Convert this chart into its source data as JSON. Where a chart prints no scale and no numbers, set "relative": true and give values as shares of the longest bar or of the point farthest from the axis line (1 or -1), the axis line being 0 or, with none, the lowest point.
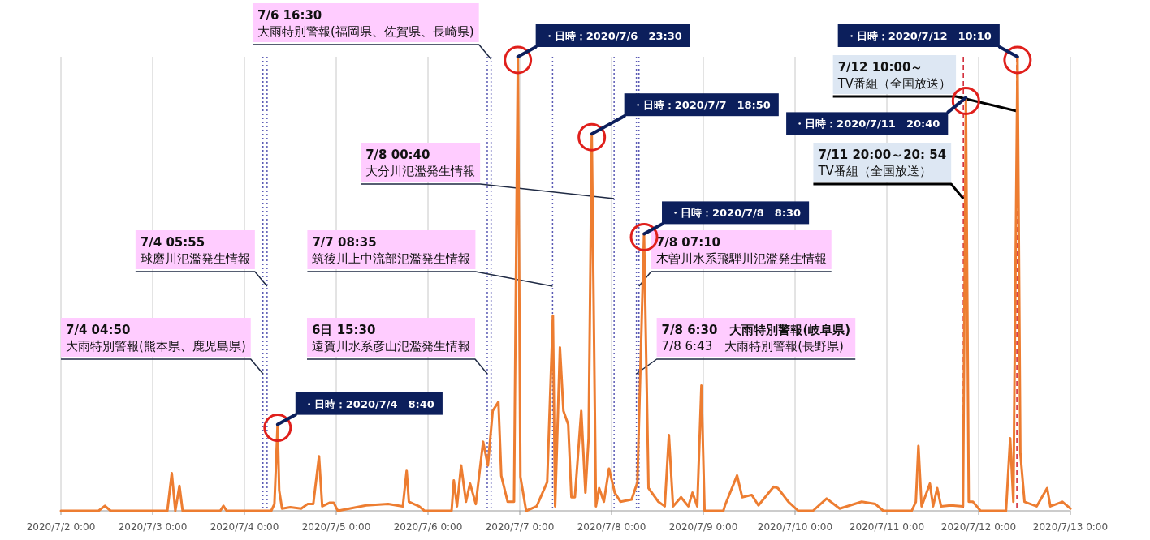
{
  "chart_data": {
    "type": "line",
    "relative": true,
    "grid": "x",
    "marker": "none",
    "line_style": "solid",
    "xlim": [
      "2020-07-02",
      "2020-07-13"
    ],
    "xticks": [
      {
        "value": "2020-07-02",
        "label": "2020/7/2 0:00"
      },
      {
        "value": "2020-07-03",
        "label": "2020/7/3 0:00"
      },
      {
        "value": "2020-07-04",
        "label": "2020/7/4 0:00"
      },
      {
        "value": "2020-07-05",
        "label": "2020/7/5 0:00"
      },
      {
        "value": "2020-07-06",
        "label": "2020/7/6 0:00"
      },
      {
        "value": "2020-07-07",
        "label": "2020/7/7 0:00"
      },
      {
        "value": "2020-07-08",
        "label": "2020/7/8 0:00"
      },
      {
        "value": "2020-07-09",
        "label": "2020/7/9 0:00"
      },
      {
        "value": "2020-07-10",
        "label": "2020/7/10 0:00"
      },
      {
        "value": "2020-07-11",
        "label": "2020/7/11 0:00"
      },
      {
        "value": "2020-07-12",
        "label": "2020/7/12 0:00"
      },
      {
        "value": "2020-07-13",
        "label": "2020/7/13 0:00"
      }
    ],
    "series": [
      {
        "color": "#ed7d31",
        "x": [
          "2020-07-02T00:00",
          "2020-07-02T09:50",
          "2020-07-02T11:30",
          "2020-07-02T13:00",
          "2020-07-03T03:50",
          "2020-07-03T05:00",
          "2020-07-03T05:55",
          "2020-07-03T07:00",
          "2020-07-03T07:50",
          "2020-07-03T17:40",
          "2020-07-03T18:30",
          "2020-07-03T19:20",
          "2020-07-04T07:00",
          "2020-07-04T07:50",
          "2020-07-04T08:40",
          "2020-07-04T09:05",
          "2020-07-04T09:50",
          "2020-07-04T12:00",
          "2020-07-04T14:50",
          "2020-07-04T16:30",
          "2020-07-04T18:00",
          "2020-07-04T19:30",
          "2020-07-04T20:20",
          "2020-07-04T22:20",
          "2020-07-04T23:20",
          "2020-07-05T00:25",
          "2020-07-05T07:50",
          "2020-07-05T13:35",
          "2020-07-05T17:25",
          "2020-07-05T18:25",
          "2020-07-05T19:00",
          "2020-07-05T21:40",
          "2020-07-05T23:05",
          "2020-07-06T06:10",
          "2020-07-06T06:45",
          "2020-07-06T07:35",
          "2020-07-06T08:40",
          "2020-07-06T09:55",
          "2020-07-06T11:00",
          "2020-07-06T12:30",
          "2020-07-06T14:25",
          "2020-07-06T15:40",
          "2020-07-06T16:55",
          "2020-07-06T18:25",
          "2020-07-06T19:10",
          "2020-07-06T20:50",
          "2020-07-06T22:30",
          "2020-07-06T23:30",
          "2020-07-07T00:10",
          "2020-07-07T01:40",
          "2020-07-07T04:25",
          "2020-07-07T07:10",
          "2020-07-07T08:40",
          "2020-07-07T09:15",
          "2020-07-07T10:30",
          "2020-07-07T11:25",
          "2020-07-07T12:40",
          "2020-07-07T13:30",
          "2020-07-07T14:25",
          "2020-07-07T16:05",
          "2020-07-07T17:10",
          "2020-07-07T18:00",
          "2020-07-07T18:50",
          "2020-07-07T19:55",
          "2020-07-07T20:45",
          "2020-07-07T22:00",
          "2020-07-07T23:20",
          "2020-07-08T00:50",
          "2020-07-08T02:20",
          "2020-07-08T05:15",
          "2020-07-08T06:45",
          "2020-07-08T08:30",
          "2020-07-08T09:40",
          "2020-07-08T12:15",
          "2020-07-08T13:55",
          "2020-07-08T15:00",
          "2020-07-08T16:05",
          "2020-07-08T18:10",
          "2020-07-08T20:05",
          "2020-07-08T21:10",
          "2020-07-08T22:25",
          "2020-07-08T23:30",
          "2020-07-09T00:20",
          "2020-07-09T05:15",
          "2020-07-09T05:40",
          "2020-07-09T08:50",
          "2020-07-09T10:10",
          "2020-07-09T12:40",
          "2020-07-09T14:25",
          "2020-07-09T18:25",
          "2020-07-09T19:30",
          "2020-07-09T22:15",
          "2020-07-10T00:50",
          "2020-07-10T04:40",
          "2020-07-10T08:15",
          "2020-07-10T11:40",
          "2020-07-10T17:25",
          "2020-07-10T21:00",
          "2020-07-10T23:05",
          "2020-07-11T06:30",
          "2020-07-11T07:35",
          "2020-07-11T08:15",
          "2020-07-11T09:05",
          "2020-07-11T11:15",
          "2020-07-11T12:05",
          "2020-07-11T13:10",
          "2020-07-11T14:10",
          "2020-07-11T16:45",
          "2020-07-11T19:55",
          "2020-07-11T20:40",
          "2020-07-11T21:25",
          "2020-07-11T22:30",
          "2020-07-12T00:30",
          "2020-07-12T07:10",
          "2020-07-12T08:15",
          "2020-07-12T09:05",
          "2020-07-12T10:10",
          "2020-07-12T10:55",
          "2020-07-12T12:00",
          "2020-07-12T15:10",
          "2020-07-12T17:55",
          "2020-07-12T18:45",
          "2020-07-12T21:55",
          "2020-07-13T00:00"
        ],
        "values": [
          0,
          0,
          0.011,
          0,
          0,
          0.083,
          0,
          0.055,
          0,
          0,
          0.011,
          0,
          0,
          0.015,
          0.19,
          0.045,
          0.005,
          0.008,
          0.005,
          0.015,
          0.015,
          0.12,
          0.01,
          0.018,
          0.018,
          0,
          0.012,
          0.015,
          0.01,
          0.088,
          0.02,
          0.01,
          0,
          0,
          0.067,
          0.01,
          0.1,
          0.02,
          0.06,
          0.015,
          0.152,
          0.1,
          0.22,
          0.24,
          0.077,
          0.02,
          0.02,
          1,
          0.075,
          0,
          0.01,
          0.063,
          0.43,
          0.01,
          0.36,
          0.22,
          0.19,
          0.03,
          0.03,
          0.22,
          0.04,
          0.16,
          0.83,
          0.01,
          0.05,
          0.02,
          0.093,
          0.04,
          0.02,
          0.025,
          0.062,
          0.61,
          0.05,
          0.02,
          0.01,
          0.167,
          0.01,
          0.03,
          0.01,
          0.04,
          0.01,
          0.276,
          0,
          0,
          0.012,
          0.078,
          0.03,
          0.035,
          0.012,
          0.053,
          0.05,
          0.02,
          0,
          0,
          0.027,
          0.005,
          0.02,
          0.015,
          0,
          0,
          0.02,
          0.143,
          0.01,
          0.06,
          0.01,
          0.05,
          0.01,
          0.012,
          0.01,
          0.91,
          0.02,
          0.02,
          0,
          0,
          0.16,
          0.02,
          1,
          0.126,
          0.02,
          0.01,
          0.05,
          0.01,
          0.02,
          0.005
        ]
      }
    ],
    "ref_lines": [
      {
        "axis": "x",
        "value": "2020-07-04T04:50",
        "label": "7/4 04:50\n大雨特別警報(熊本県、鹿児島県)",
        "color": "#5a5ab4",
        "line_style": "dotted"
      },
      {
        "axis": "x",
        "value": "2020-07-04T05:55",
        "label": "7/4 05:55\n球磨川氾濫発生情報",
        "color": "#5a5ab4",
        "line_style": "dotted"
      },
      {
        "axis": "x",
        "value": "2020-07-06T15:30",
        "label": "6日 15:30\n遠賀川水系彦山氾濫発生情報",
        "color": "#5a5ab4",
        "line_style": "dotted"
      },
      {
        "axis": "x",
        "value": "2020-07-06T16:30",
        "label": "7/6 16:30\n大雨特別警報(福岡県、佐賀県、長崎県)",
        "color": "#5a5ab4",
        "line_style": "dotted"
      },
      {
        "axis": "x",
        "value": "2020-07-07T08:35",
        "label": "7/7 08:35\n筑後川上中流部氾濫発生情報",
        "color": "#5a5ab4",
        "line_style": "dotted"
      },
      {
        "axis": "x",
        "value": "2020-07-08T00:40",
        "label": "7/8 00:40\n大分川氾濫発生情報",
        "color": "#5a5ab4",
        "line_style": "dotted"
      },
      {
        "axis": "x",
        "value": "2020-07-08T06:30",
        "label": "7/8 6:30　大雨特別警報(岐阜県)\n7/8 6:43　大雨特別警報(長野県)",
        "color": "#5a5ab4",
        "line_style": "dotted"
      },
      {
        "axis": "x",
        "value": "2020-07-08T07:10",
        "label": "7/8 07:10\n木曽川水系飛騨川氾濫発生情報",
        "color": "#5a5ab4",
        "line_style": "dotted"
      },
      {
        "axis": "x",
        "value": "2020-07-11T20:00",
        "label": "7/11 20:00～20: 54\nTV番組（全国放送）",
        "color": "#d0202e",
        "line_style": "dashed"
      },
      {
        "axis": "x",
        "value": "2020-07-12T10:00",
        "label": "7/12 10:00～\nTV番組（全国放送）",
        "color": "#d0202e",
        "line_style": "dashed"
      }
    ],
    "annotations": [
      {
        "text": "・日時：2020/7/4　8:40",
        "x": "2020-07-04T08:40",
        "y": 0.19
      },
      {
        "text": "・日時：2020/7/6　23:30",
        "x": "2020-07-06T23:30",
        "y": 1
      },
      {
        "text": "・日時：2020/7/7　18:50",
        "x": "2020-07-07T18:50",
        "y": 0.83
      },
      {
        "text": "・日時：2020/7/8　8:30",
        "x": "2020-07-08T08:30",
        "y": 0.61
      },
      {
        "text": "・日時：2020/7/11　20:40",
        "x": "2020-07-11T20:40",
        "y": 0.91
      },
      {
        "text": "・日時：2020/7/12　10:10",
        "x": "2020-07-12T10:10",
        "y": 1
      }
    ]
  }
}
